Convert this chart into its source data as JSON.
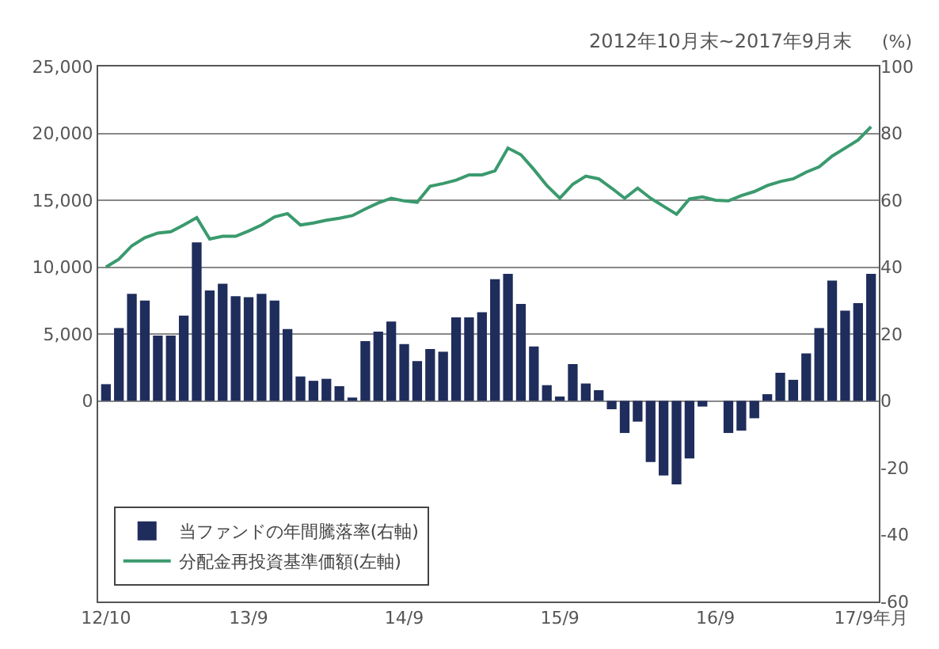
{
  "chart_data": {
    "type": "bar",
    "subtitle": "2012年10月末~2017年9月末",
    "y2label": "(%)",
    "categories": [
      "12/10",
      null,
      null,
      null,
      null,
      null,
      null,
      null,
      null,
      null,
      null,
      "13/9",
      null,
      null,
      null,
      null,
      null,
      null,
      null,
      null,
      null,
      null,
      null,
      "14/9",
      null,
      null,
      null,
      null,
      null,
      null,
      null,
      null,
      null,
      null,
      null,
      "15/9",
      null,
      null,
      null,
      null,
      null,
      null,
      null,
      null,
      null,
      null,
      null,
      "16/9",
      null,
      null,
      null,
      null,
      null,
      null,
      null,
      null,
      null,
      null,
      null,
      "17/9年月"
    ],
    "series": [
      {
        "name": "当ファンドの年間騰落率(右軸)",
        "axis": "y2",
        "color": "#1f2d5c",
        "values": [
          5,
          21.8,
          32,
          30,
          19.5,
          19.5,
          25.5,
          47.4,
          33,
          35,
          31.3,
          31,
          32,
          30,
          21.5,
          7.3,
          6,
          6.6,
          4.4,
          1,
          17.9,
          20.7,
          23.7,
          17,
          11.9,
          15.5,
          14.7,
          25,
          25,
          26.5,
          36.4,
          38,
          29,
          16.3,
          4.7,
          1.3,
          11,
          5.2,
          3.2,
          -2.5,
          -9.6,
          -6.2,
          -18.3,
          -22.3,
          -25,
          -17.2,
          -1.7,
          null,
          -9.6,
          -8.9,
          -5.2,
          2,
          8.4,
          6.3,
          14.2,
          21.8,
          36,
          27,
          29.2,
          38
        ]
      },
      {
        "name": "分配金再投資基準価額(左軸)",
        "type": "line",
        "axis": "y",
        "color": "#3a9a6e",
        "values": [
          10000,
          10600,
          11600,
          12200,
          12550,
          12650,
          13150,
          13700,
          12100,
          12300,
          12300,
          12700,
          13150,
          13750,
          14000,
          13150,
          13300,
          13500,
          13650,
          13850,
          14350,
          14800,
          15150,
          14950,
          14850,
          16050,
          16250,
          16500,
          16900,
          16900,
          17200,
          18900,
          18400,
          17300,
          16100,
          15150,
          16200,
          16800,
          16600,
          15900,
          15150,
          15900,
          15150,
          14550,
          13950,
          15100,
          15250,
          15000,
          14950,
          15350,
          15650,
          16100,
          16400,
          16600,
          17100,
          17500,
          18300,
          18900,
          19500,
          20500
        ]
      }
    ],
    "ylim": [
      -15000,
      25000
    ],
    "yticks": [
      0,
      {
        "value": 5000,
        "label": "5,000"
      },
      {
        "value": 10000,
        "label": "10,000"
      },
      {
        "value": 15000,
        "label": "15,000"
      },
      {
        "value": 20000,
        "label": "20,000"
      },
      {
        "value": 25000,
        "label": "25,000"
      }
    ],
    "y2lim": [
      -60,
      100
    ],
    "y2ticks": [
      -60,
      -40,
      -20,
      0,
      20,
      40,
      60,
      80,
      100
    ],
    "grid": "y",
    "legend": "bottom left"
  }
}
